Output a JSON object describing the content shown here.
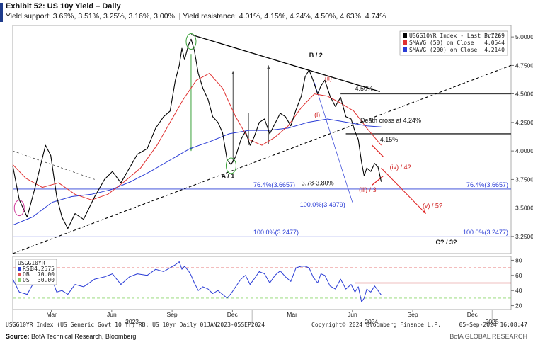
{
  "header": {
    "title": "Exhibit 52: US 10y Yield – Daily",
    "subtitle": "Yield support: 3.66%, 3.51%, 3.25%, 3.16%, 3.00%.  |  Yield resistance: 4.01%, 4.15%, 4.24%, 4.50%, 4.63%, 4.74%"
  },
  "footer": {
    "source_label": "Source:",
    "source_text": " BofA Technical Research, Bloomberg",
    "brand": "BofA GLOBAL RESEARCH",
    "bloomberg_caption": "USGG10YR Index (US Generic Govt 10 Yr) RB: US 10yr Daily 01JAN2023-05SEP2024",
    "copyright": "Copyright© 2024 Bloomberg Finance L.P.",
    "timestamp": "05-Sep-2024 16:08:47"
  },
  "chart_data": [
    {
      "type": "line",
      "panel": "price",
      "y_ticks": [
        "5.0000",
        "4.7500",
        "4.5000",
        "4.2500",
        "4.0000",
        "3.7500",
        "3.5000",
        "3.2500"
      ],
      "ylim": [
        3.1,
        5.1
      ],
      "x_labels": [
        {
          "label": "Mar",
          "t": 59
        },
        {
          "label": "Jun",
          "t": 151
        },
        {
          "label": "Sep",
          "t": 243
        },
        {
          "label": "Dec",
          "t": 335
        },
        {
          "label": "Mar",
          "t": 426
        },
        {
          "label": "Jun",
          "t": 518
        },
        {
          "label": "Sep",
          "t": 610
        },
        {
          "label": "Dec",
          "t": 701
        }
      ],
      "year_labels": [
        {
          "label": "2023",
          "t": 182
        },
        {
          "label": "2024",
          "t": 547
        },
        {
          "label": "2025",
          "t": 731
        }
      ],
      "x_range": [
        0,
        760
      ],
      "legend": {
        "position": "top-right",
        "entries": [
          {
            "name": "USGG10YR Index - Last Price",
            "value": "3.7269",
            "color": "#000000"
          },
          {
            "name": "SMAVG (50)  on Close",
            "value": "4.0544",
            "color": "#e03030"
          },
          {
            "name": "SMAVG (200)  on Close",
            "value": "4.2140",
            "color": "#2a3cd6"
          }
        ]
      },
      "series": [
        {
          "name": "USGG10YR Index - Last Price",
          "color": "#000000",
          "points": [
            [
              0,
              3.87
            ],
            [
              10,
              3.57
            ],
            [
              22,
              3.42
            ],
            [
              35,
              3.7
            ],
            [
              50,
              4.05
            ],
            [
              58,
              3.96
            ],
            [
              67,
              3.6
            ],
            [
              75,
              3.42
            ],
            [
              84,
              3.32
            ],
            [
              95,
              3.45
            ],
            [
              108,
              3.4
            ],
            [
              125,
              3.6
            ],
            [
              140,
              3.75
            ],
            [
              152,
              3.82
            ],
            [
              165,
              3.72
            ],
            [
              178,
              3.85
            ],
            [
              190,
              3.97
            ],
            [
              205,
              4.02
            ],
            [
              218,
              4.2
            ],
            [
              230,
              4.3
            ],
            [
              240,
              4.35
            ],
            [
              248,
              4.62
            ],
            [
              254,
              4.75
            ],
            [
              258,
              4.9
            ],
            [
              262,
              4.8
            ],
            [
              268,
              4.93
            ],
            [
              272,
              4.98
            ],
            [
              277,
              4.88
            ],
            [
              283,
              4.68
            ],
            [
              290,
              4.55
            ],
            [
              298,
              4.45
            ],
            [
              305,
              4.3
            ],
            [
              313,
              4.25
            ],
            [
              320,
              4.16
            ],
            [
              327,
              3.92
            ],
            [
              333,
              3.88
            ],
            [
              340,
              3.95
            ],
            [
              348,
              4.1
            ],
            [
              355,
              4.17
            ],
            [
              362,
              4.05
            ],
            [
              368,
              4.12
            ],
            [
              376,
              4.25
            ],
            [
              384,
              4.28
            ],
            [
              392,
              4.15
            ],
            [
              400,
              4.24
            ],
            [
              408,
              4.33
            ],
            [
              416,
              4.3
            ],
            [
              424,
              4.22
            ],
            [
              432,
              4.36
            ],
            [
              440,
              4.48
            ],
            [
              446,
              4.65
            ],
            [
              452,
              4.71
            ],
            [
              458,
              4.62
            ],
            [
              465,
              4.5
            ],
            [
              470,
              4.57
            ],
            [
              476,
              4.62
            ],
            [
              484,
              4.48
            ],
            [
              492,
              4.39
            ],
            [
              500,
              4.47
            ],
            [
              508,
              4.3
            ],
            [
              516,
              4.28
            ],
            [
              522,
              4.17
            ],
            [
              527,
              4.1
            ],
            [
              532,
              3.9
            ],
            [
              536,
              3.78
            ],
            [
              540,
              3.85
            ],
            [
              546,
              3.82
            ],
            [
              552,
              3.89
            ],
            [
              557,
              3.86
            ],
            [
              562,
              3.73
            ]
          ]
        },
        {
          "name": "SMAVG (50)  on Close",
          "color": "#e03030",
          "points": [
            [
              0,
              3.88
            ],
            [
              20,
              3.76
            ],
            [
              45,
              3.68
            ],
            [
              70,
              3.72
            ],
            [
              95,
              3.62
            ],
            [
              120,
              3.57
            ],
            [
              145,
              3.62
            ],
            [
              170,
              3.73
            ],
            [
              195,
              3.85
            ],
            [
              220,
              4.05
            ],
            [
              240,
              4.25
            ],
            [
              260,
              4.45
            ],
            [
              280,
              4.62
            ],
            [
              300,
              4.68
            ],
            [
              320,
              4.55
            ],
            [
              340,
              4.3
            ],
            [
              360,
              4.1
            ],
            [
              380,
              4.05
            ],
            [
              400,
              4.12
            ],
            [
              420,
              4.22
            ],
            [
              440,
              4.38
            ],
            [
              460,
              4.5
            ],
            [
              480,
              4.48
            ],
            [
              500,
              4.42
            ],
            [
              520,
              4.35
            ],
            [
              540,
              4.2
            ],
            [
              562,
              4.05
            ]
          ]
        },
        {
          "name": "SMAVG (200)  on Close",
          "color": "#2a3cd6",
          "points": [
            [
              0,
              3.35
            ],
            [
              30,
              3.42
            ],
            [
              60,
              3.55
            ],
            [
              90,
              3.6
            ],
            [
              120,
              3.62
            ],
            [
              150,
              3.66
            ],
            [
              180,
              3.73
            ],
            [
              210,
              3.82
            ],
            [
              240,
              3.92
            ],
            [
              270,
              4.02
            ],
            [
              300,
              4.08
            ],
            [
              330,
              4.15
            ],
            [
              360,
              4.18
            ],
            [
              390,
              4.18
            ],
            [
              420,
              4.2
            ],
            [
              450,
              4.25
            ],
            [
              480,
              4.28
            ],
            [
              510,
              4.25
            ],
            [
              540,
              4.22
            ],
            [
              562,
              4.21
            ]
          ]
        }
      ],
      "horizontal_levels": [
        {
          "label": "76.4%(3.6657)",
          "value": 3.6657
        },
        {
          "label": "100.0%(3.2477)",
          "value": 3.2477
        },
        {
          "value": 4.5
        },
        {
          "value": 4.15
        },
        {
          "value": 3.78
        }
      ],
      "annotations": [
        {
          "text": "B / 2",
          "t": 452,
          "v": 4.82
        },
        {
          "text": "A / 1",
          "t": 318,
          "v": 3.76
        },
        {
          "text": "4.50%",
          "t": 522,
          "v": 4.53
        },
        {
          "text": "Death cross at 4.24%",
          "t": 530,
          "v": 4.25
        },
        {
          "text": "4.15%",
          "t": 560,
          "v": 4.08
        },
        {
          "text": "3.78-3.80%",
          "t": 440,
          "v": 3.7
        },
        {
          "text": "100.0%(3.4979)",
          "t": 438,
          "v": 3.51
        },
        {
          "text": "(iv) / 4?",
          "t": 575,
          "v": 3.84
        },
        {
          "text": "(v) / 5?",
          "t": 625,
          "v": 3.5
        },
        {
          "text": "(iii) / 3",
          "t": 528,
          "v": 3.64
        },
        {
          "text": "(ii)",
          "t": 476,
          "v": 4.62
        },
        {
          "text": "(i)",
          "t": 460,
          "v": 4.3
        },
        {
          "text": "C? / 3?",
          "t": 645,
          "v": 3.18
        }
      ]
    },
    {
      "type": "line",
      "panel": "rsi",
      "y_ticks": [
        "80",
        "60",
        "40",
        "20"
      ],
      "ylim": [
        15,
        85
      ],
      "legend": {
        "position": "top-left",
        "entries": [
          {
            "name": "USGG10YR",
            "value": ""
          },
          {
            "name": "RSI",
            "value": "34.2575"
          },
          {
            "name": "OB",
            "value": "70.00"
          },
          {
            "name": "OS",
            "value": "30.00"
          }
        ]
      },
      "overbought": 70,
      "oversold": 30,
      "series": [
        {
          "name": "RSI",
          "color": "#2a3cd6",
          "points": [
            [
              0,
              55
            ],
            [
              10,
              38
            ],
            [
              22,
              35
            ],
            [
              35,
              55
            ],
            [
              50,
              70
            ],
            [
              58,
              60
            ],
            [
              67,
              38
            ],
            [
              75,
              40
            ],
            [
              84,
              35
            ],
            [
              95,
              48
            ],
            [
              108,
              45
            ],
            [
              125,
              55
            ],
            [
              140,
              58
            ],
            [
              152,
              62
            ],
            [
              165,
              48
            ],
            [
              178,
              58
            ],
            [
              190,
              62
            ],
            [
              205,
              60
            ],
            [
              218,
              68
            ],
            [
              230,
              65
            ],
            [
              240,
              70
            ],
            [
              248,
              74
            ],
            [
              254,
              78
            ],
            [
              258,
              68
            ],
            [
              262,
              72
            ],
            [
              268,
              66
            ],
            [
              272,
              60
            ],
            [
              277,
              50
            ],
            [
              283,
              40
            ],
            [
              290,
              45
            ],
            [
              298,
              42
            ],
            [
              305,
              36
            ],
            [
              313,
              40
            ],
            [
              320,
              35
            ],
            [
              327,
              30
            ],
            [
              333,
              36
            ],
            [
              340,
              45
            ],
            [
              348,
              55
            ],
            [
              355,
              60
            ],
            [
              362,
              48
            ],
            [
              368,
              55
            ],
            [
              376,
              65
            ],
            [
              384,
              62
            ],
            [
              392,
              50
            ],
            [
              400,
              60
            ],
            [
              408,
              66
            ],
            [
              416,
              58
            ],
            [
              424,
              52
            ],
            [
              432,
              70
            ],
            [
              440,
              72
            ],
            [
              446,
              72
            ],
            [
              452,
              70
            ],
            [
              458,
              58
            ],
            [
              465,
              50
            ],
            [
              470,
              62
            ],
            [
              476,
              60
            ],
            [
              484,
              46
            ],
            [
              492,
              42
            ],
            [
              500,
              55
            ],
            [
              508,
              42
            ],
            [
              516,
              48
            ],
            [
              522,
              38
            ],
            [
              527,
              45
            ],
            [
              532,
              25
            ],
            [
              536,
              30
            ],
            [
              540,
              42
            ],
            [
              546,
              38
            ],
            [
              552,
              46
            ],
            [
              557,
              40
            ],
            [
              562,
              34
            ]
          ]
        }
      ]
    }
  ]
}
